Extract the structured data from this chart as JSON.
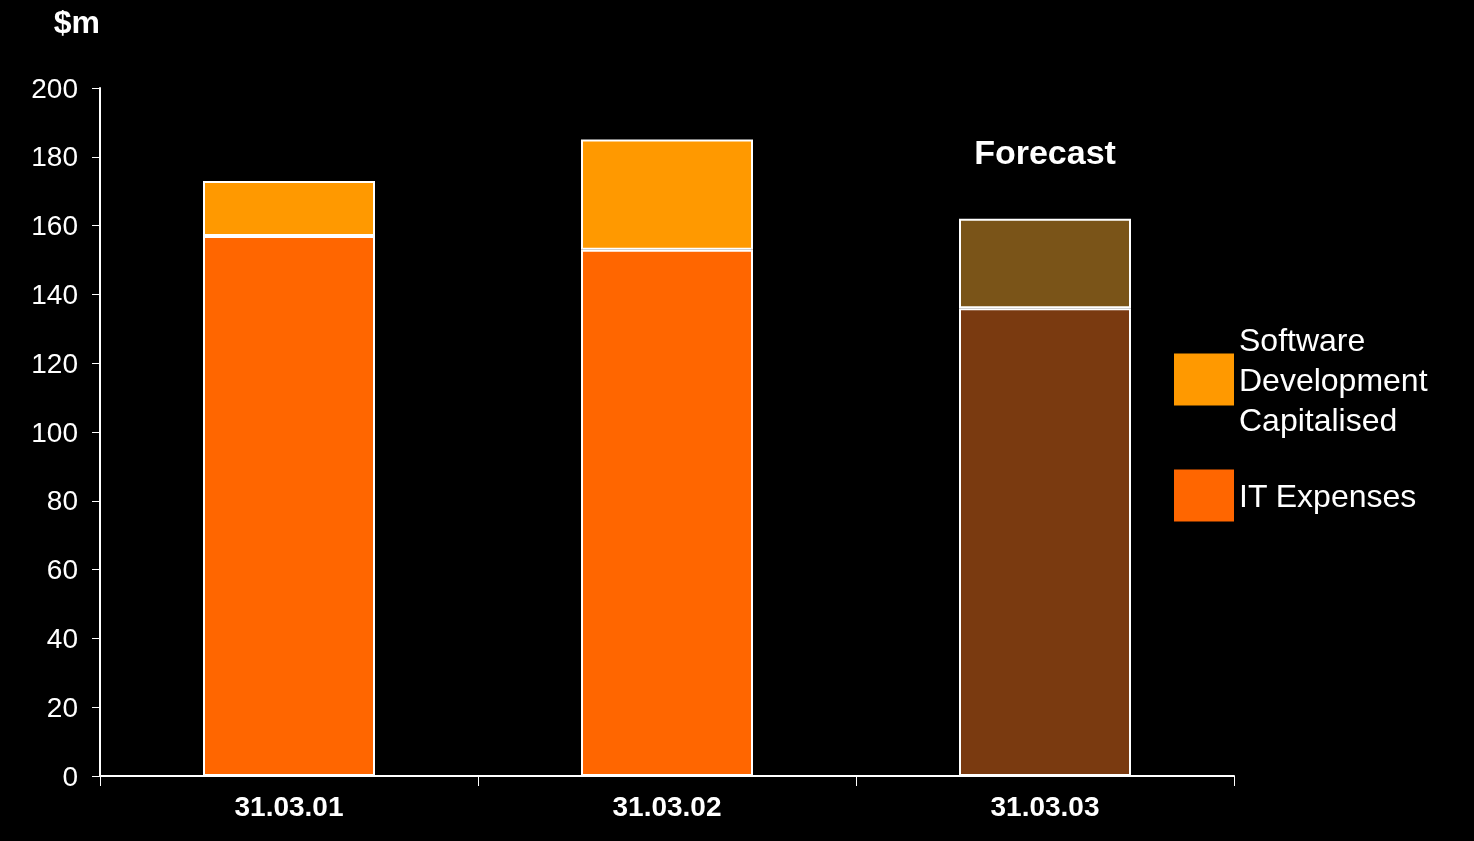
{
  "chart_data": {
    "type": "bar",
    "ylabel": "$m",
    "categories": [
      "31.03.01",
      "31.03.02",
      "31.03.03"
    ],
    "stacked": true,
    "series": [
      {
        "name": "IT Expenses",
        "color": "#ff6600",
        "colors": [
          "#ff6600",
          "#ff6600",
          "#7a3a10"
        ],
        "values": [
          157,
          153,
          136
        ]
      },
      {
        "name": "Software Development Capitalised",
        "color": "#ff9900",
        "colors": [
          "#ff9900",
          "#ff9900",
          "#7a5418"
        ],
        "values": [
          16,
          32,
          26
        ]
      }
    ],
    "ylim": [
      0,
      200
    ],
    "yticks": [
      0,
      20,
      40,
      60,
      80,
      100,
      120,
      140,
      160,
      180,
      200
    ],
    "grid": false,
    "legend": "right",
    "annotations": [
      "Forecast"
    ]
  }
}
